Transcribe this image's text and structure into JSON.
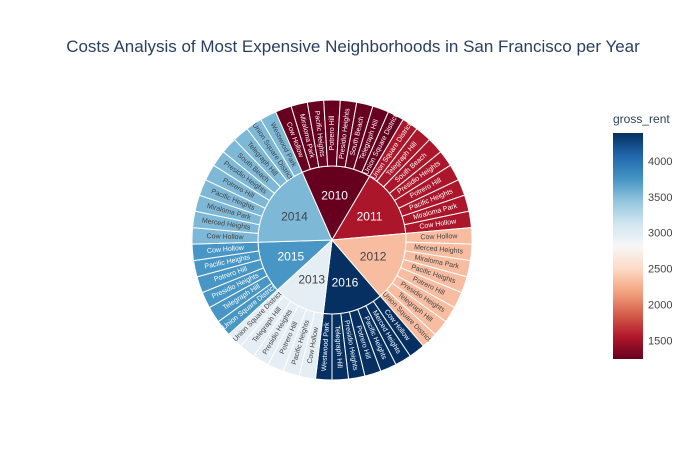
{
  "chart_data": {
    "type": "sunburst",
    "title": "Costs Analysis of Most Expensive Neighborhoods in San Francisco per Year",
    "colorbar": {
      "title": "gross_rent",
      "range": [
        1239,
        4390
      ],
      "ticks": [
        1500,
        2000,
        2500,
        3000,
        3500,
        4000
      ],
      "colorscale": [
        "#67001f",
        "#b2182b",
        "#d6604d",
        "#f4a582",
        "#fddbc7",
        "#f7f7f7",
        "#d1e5f0",
        "#92c5de",
        "#4393c3",
        "#2166ac",
        "#053061"
      ]
    },
    "years": [
      {
        "year": "2010",
        "value": 1239,
        "neighborhoods": [
          "Cow Hollow",
          "Miraloma Park",
          "Pacific Heights",
          "Potrero Hill",
          "Presidio Heights",
          "South Beach",
          "Telegraph Hill",
          "Union Square District"
        ]
      },
      {
        "year": "2011",
        "value": 1530,
        "neighborhoods": [
          "Union Square District",
          "Telegraph Hill",
          "South Beach",
          "Presidio Heights",
          "Potrero Hill",
          "Pacific Heights",
          "Miraloma Park",
          "Cow Hollow"
        ]
      },
      {
        "year": "2012",
        "value": 2324,
        "neighborhoods": [
          "Cow Hollow",
          "Merced Heights",
          "Miraloma Park",
          "Pacific Heights",
          "Potrero Hill",
          "Presidio Heights",
          "Telegraph Hill",
          "Union Square District"
        ]
      },
      {
        "year": "2016",
        "value": 4390,
        "neighborhoods": [
          "Cow Hollow",
          "Merced Heights",
          "Pacific Heights",
          "Potrero Hill",
          "Presidio Heights",
          "Telegraph Hill",
          "Westwood Park"
        ]
      },
      {
        "year": "2013",
        "value": 2971,
        "neighborhoods": [
          "Cow Hollow",
          "Pacific Heights",
          "Potrero Hill",
          "Presidio Heights",
          "Telegraph Hill",
          "Union Square District"
        ]
      },
      {
        "year": "2015",
        "value": 3739,
        "neighborhoods": [
          "Union Square District",
          "Telegraph Hill",
          "Presidio Heights",
          "Potrero Hill",
          "Pacific Heights",
          "Cow Hollow"
        ]
      },
      {
        "year": "2014",
        "value": 3528,
        "neighborhoods": [
          "Cow Hollow",
          "Merced Heights",
          "Miraloma Park",
          "Pacific Heights",
          "Potrero Hill",
          "Presidio Heights",
          "South Beach",
          "Telegraph Hill",
          "Union Square District",
          "Westwood Park"
        ]
      }
    ]
  }
}
